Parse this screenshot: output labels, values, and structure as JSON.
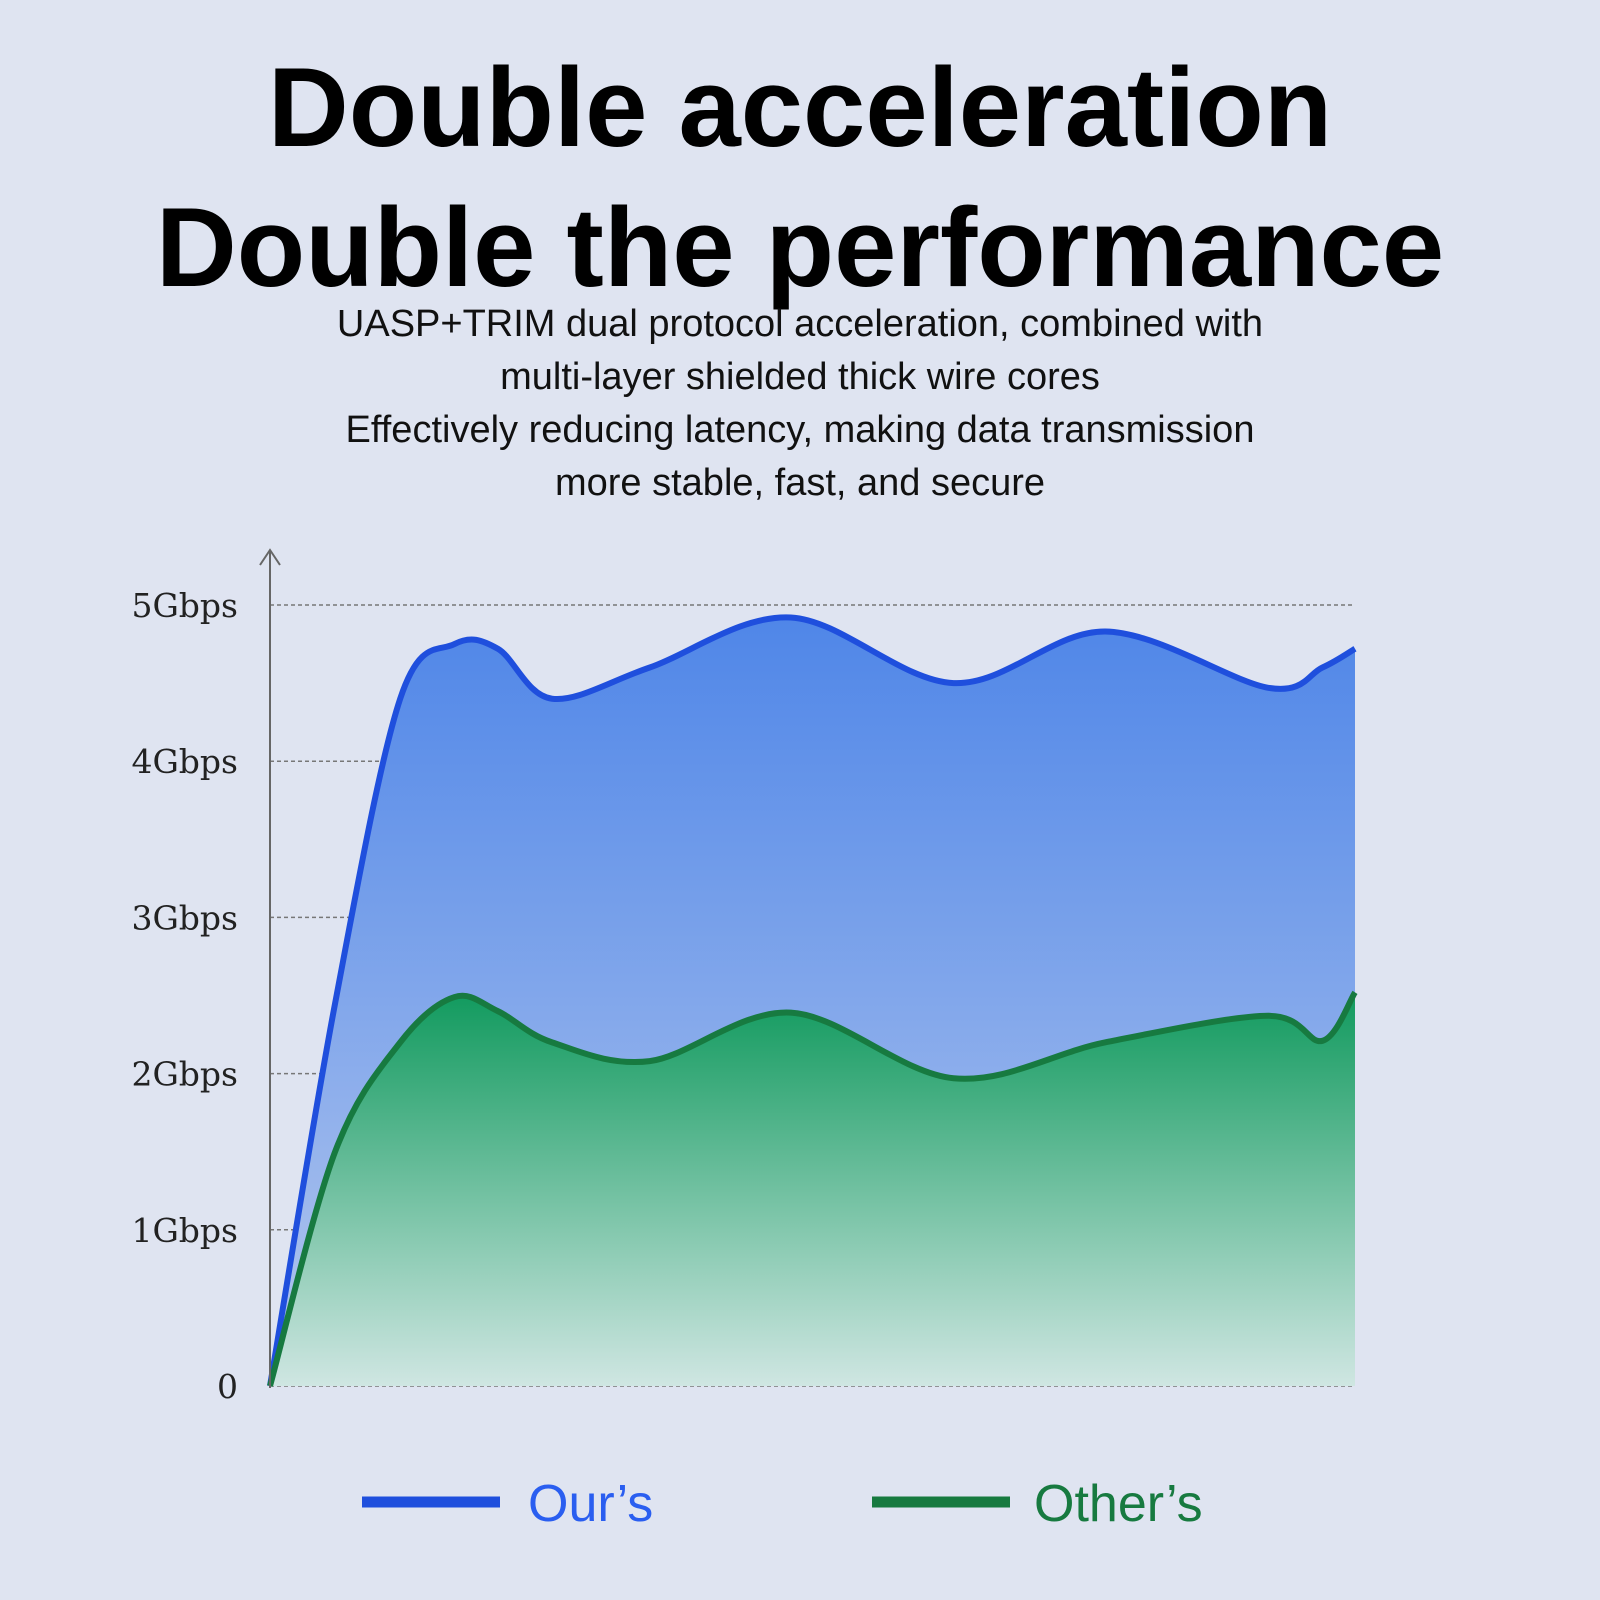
{
  "header": {
    "title_line1": "Double acceleration",
    "title_line2": "Double the performance",
    "subtitle_lines": [
      "UASP+TRIM dual protocol acceleration, combined with",
      "multi-layer shielded thick wire cores",
      "Effectively reducing latency, making data transmission",
      "more stable, fast, and secure"
    ]
  },
  "chart_data": {
    "type": "area",
    "title": "",
    "xlabel": "",
    "ylabel": "",
    "ylim": [
      0,
      5
    ],
    "yticks": [
      "0",
      "1Gbps",
      "2Gbps",
      "3Gbps",
      "4Gbps",
      "5Gbps"
    ],
    "grid": true,
    "legend_position": "bottom",
    "x": [
      0,
      6,
      12,
      17,
      21,
      26,
      35,
      48,
      63,
      77,
      92,
      97,
      100
    ],
    "series": [
      {
        "name": "Our’s",
        "color": "#1f4fdd",
        "fill_top": "#4f86e8",
        "fill_bottom": "#b5c8ee",
        "values": [
          0,
          2.45,
          4.4,
          4.75,
          4.72,
          4.4,
          4.6,
          4.92,
          4.5,
          4.83,
          4.47,
          4.6,
          4.72
        ]
      },
      {
        "name": "Other’s",
        "color": "#177a40",
        "fill_top": "#119a5e",
        "fill_bottom": "#cfe6e2",
        "values": [
          0,
          1.5,
          2.2,
          2.49,
          2.4,
          2.2,
          2.08,
          2.39,
          1.97,
          2.2,
          2.37,
          2.21,
          2.52
        ]
      }
    ]
  }
}
